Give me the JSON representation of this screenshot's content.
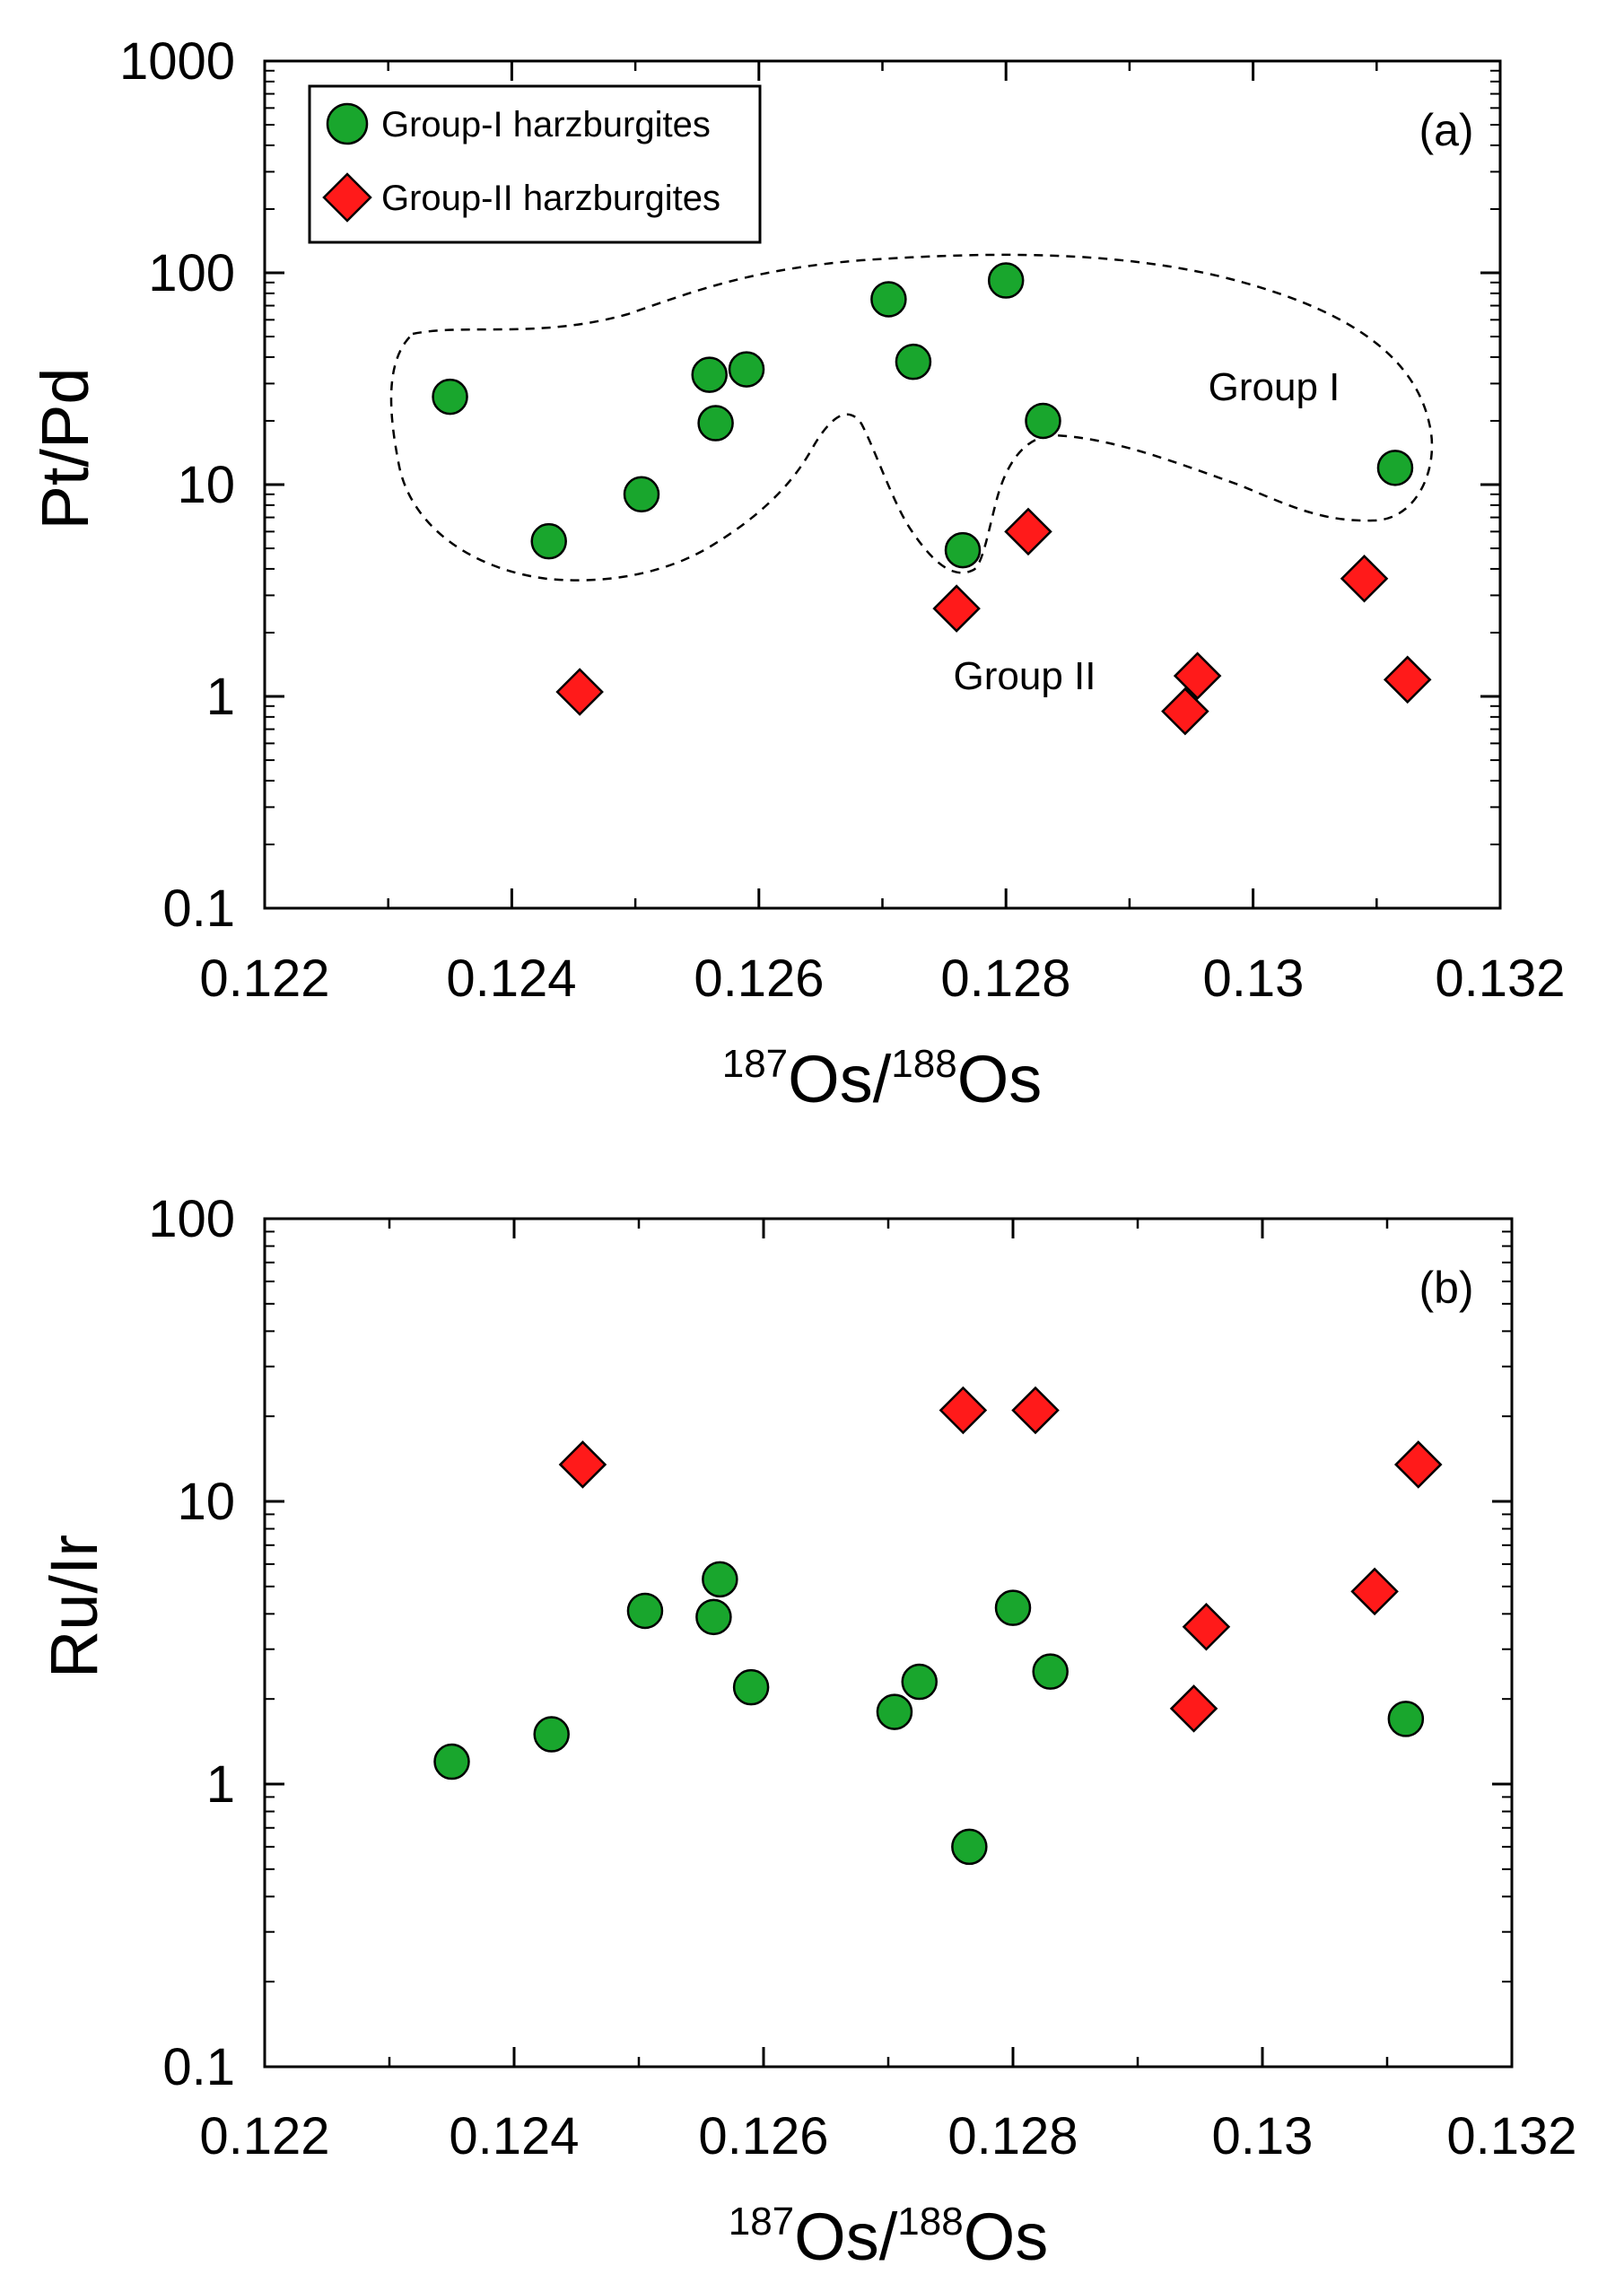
{
  "chart_data": [
    {
      "panel": "a",
      "type": "scatter",
      "panel_label": "(a)",
      "xlabel": {
        "sup1": "187",
        "main1": "Os/",
        "sup2": "188",
        "main2": "Os"
      },
      "ylabel": "Pt/Pd",
      "xlim": [
        0.122,
        0.132
      ],
      "ylim": [
        0.1,
        1000
      ],
      "yscale": "log",
      "x_ticks": [
        0.122,
        0.124,
        0.126,
        0.128,
        0.13,
        0.132
      ],
      "x_tick_labels": [
        "0.122",
        "0.124",
        "0.126",
        "0.128",
        "0.13",
        "0.132"
      ],
      "y_ticks": [
        0.1,
        1,
        10,
        100,
        1000
      ],
      "y_tick_labels": [
        "0.1",
        "1",
        "10",
        "100",
        "1000"
      ],
      "legend": {
        "placement": "top-left",
        "entries": [
          {
            "label": "Group-I harzburgites",
            "marker": "circle",
            "color": "#19a62d"
          },
          {
            "label": "Group-II harzburgites",
            "marker": "diamond",
            "color": "#ff1a1a"
          }
        ]
      },
      "annotations": [
        "Group I",
        "Group II"
      ],
      "series": [
        {
          "name": "Group-I harzburgites",
          "marker": "circle",
          "color": "#19a62d",
          "points": [
            [
              0.1235,
              26
            ],
            [
              0.1243,
              5.4
            ],
            [
              0.12505,
              9
            ],
            [
              0.1256,
              33
            ],
            [
              0.12565,
              19.5
            ],
            [
              0.1259,
              35
            ],
            [
              0.12705,
              75
            ],
            [
              0.12725,
              38
            ],
            [
              0.12765,
              4.9
            ],
            [
              0.128,
              92
            ],
            [
              0.1283,
              20
            ],
            [
              0.13115,
              12
            ]
          ]
        },
        {
          "name": "Group-II harzburgites",
          "marker": "diamond",
          "color": "#ff1a1a",
          "points": [
            [
              0.12455,
              1.05
            ],
            [
              0.1276,
              2.6
            ],
            [
              0.12818,
              6
            ],
            [
              0.12945,
              0.85
            ],
            [
              0.12955,
              1.25
            ],
            [
              0.1309,
              3.6
            ],
            [
              0.13125,
              1.2
            ]
          ]
        }
      ]
    },
    {
      "panel": "b",
      "type": "scatter",
      "panel_label": "(b)",
      "xlabel": {
        "sup1": "187",
        "main1": "Os/",
        "sup2": "188",
        "main2": "Os"
      },
      "ylabel": "Ru/Ir",
      "xlim": [
        0.122,
        0.132
      ],
      "ylim": [
        0.1,
        100
      ],
      "yscale": "log",
      "x_ticks": [
        0.122,
        0.124,
        0.126,
        0.128,
        0.13,
        0.132
      ],
      "x_tick_labels": [
        "0.122",
        "0.124",
        "0.126",
        "0.128",
        "0.13",
        "0.132"
      ],
      "y_ticks": [
        0.1,
        1,
        10,
        100
      ],
      "y_tick_labels": [
        "0.1",
        "1",
        "10",
        "100"
      ],
      "series": [
        {
          "name": "Group-I harzburgites",
          "marker": "circle",
          "color": "#19a62d",
          "points": [
            [
              0.1235,
              1.2
            ],
            [
              0.1243,
              1.5
            ],
            [
              0.12505,
              4.1
            ],
            [
              0.1256,
              3.9
            ],
            [
              0.12565,
              5.3
            ],
            [
              0.1259,
              2.2
            ],
            [
              0.12705,
              1.8
            ],
            [
              0.12725,
              2.3
            ],
            [
              0.12765,
              0.6
            ],
            [
              0.128,
              4.2
            ],
            [
              0.1283,
              2.5
            ],
            [
              0.13115,
              1.7
            ]
          ]
        },
        {
          "name": "Group-II harzburgites",
          "marker": "diamond",
          "color": "#ff1a1a",
          "points": [
            [
              0.12455,
              13.5
            ],
            [
              0.1276,
              21
            ],
            [
              0.12818,
              21
            ],
            [
              0.12945,
              1.85
            ],
            [
              0.12955,
              3.6
            ],
            [
              0.1309,
              4.8
            ],
            [
              0.13125,
              13.5
            ]
          ]
        }
      ]
    }
  ]
}
